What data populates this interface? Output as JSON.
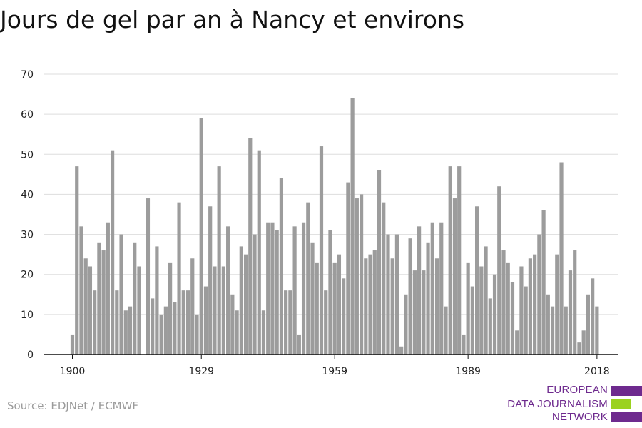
{
  "title": "Jours de gel par an à Nancy et environs",
  "source": "Source: EDJNet / ECMWF",
  "logo": {
    "lines": [
      "EUROPEAN",
      "DATA JOURNALISM",
      "NETWORK"
    ],
    "colors": {
      "purple": "#6e2a8e",
      "green": "#9bd21f"
    }
  },
  "colors": {
    "bar": "#9c9c9c",
    "grid": "#dddddd",
    "axis": "#111111"
  },
  "chart_data": {
    "type": "bar",
    "title": "Jours de gel par an à Nancy et environs",
    "xlabel": "",
    "ylabel": "",
    "x_start": 1900,
    "ylim": [
      0,
      70
    ],
    "yticks": [
      0,
      10,
      20,
      30,
      40,
      50,
      60,
      70
    ],
    "xticks": [
      1900,
      1929,
      1959,
      1989,
      2018
    ],
    "grid": true,
    "values": [
      5,
      47,
      32,
      24,
      22,
      16,
      28,
      26,
      33,
      51,
      16,
      30,
      11,
      12,
      28,
      22,
      0,
      39,
      14,
      27,
      10,
      12,
      23,
      13,
      38,
      16,
      16,
      24,
      10,
      59,
      17,
      37,
      22,
      47,
      22,
      32,
      15,
      11,
      27,
      25,
      54,
      30,
      51,
      11,
      33,
      33,
      31,
      44,
      16,
      16,
      32,
      5,
      33,
      38,
      28,
      23,
      52,
      16,
      31,
      23,
      25,
      19,
      43,
      64,
      39,
      40,
      24,
      25,
      26,
      46,
      38,
      30,
      24,
      30,
      2,
      15,
      29,
      21,
      32,
      21,
      28,
      33,
      24,
      33,
      12,
      47,
      39,
      47,
      5,
      23,
      17,
      37,
      22,
      27,
      14,
      20,
      42,
      26,
      23,
      18,
      6,
      22,
      17,
      24,
      25,
      30,
      36,
      15,
      12,
      25,
      48,
      12,
      21,
      26,
      3,
      6,
      15,
      19,
      12
    ]
  }
}
